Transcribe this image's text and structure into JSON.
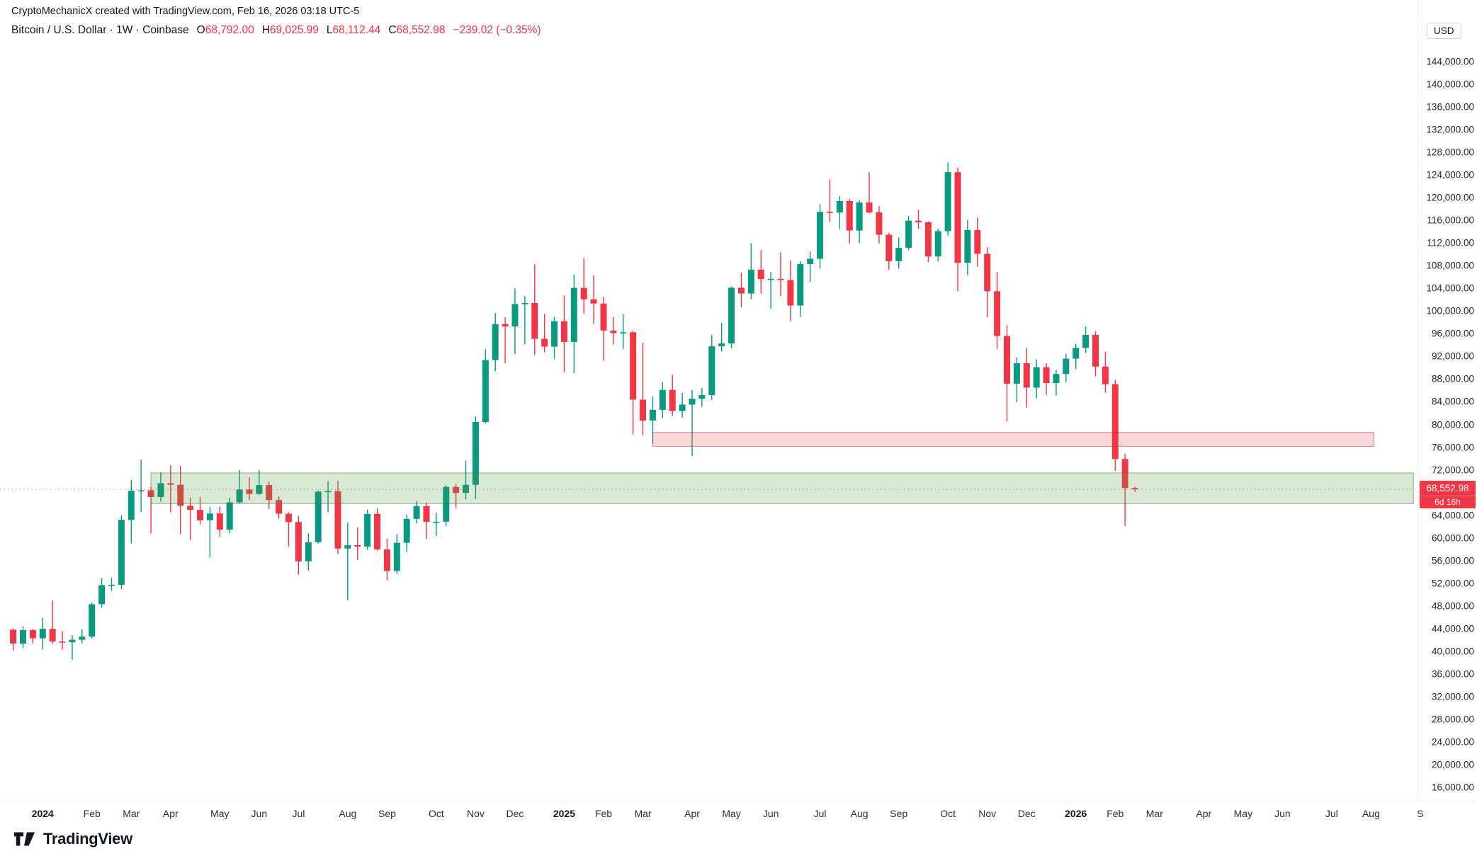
{
  "header": {
    "attribution": "CryptoMechanicX created with TradingView.com, Feb 16, 2026 03:18 UTC-5",
    "symbol": "Bitcoin / U.S. Dollar · 1W · Coinbase",
    "ohlc": {
      "open_label": "O",
      "open_value": "68,792.00",
      "high_label": "H",
      "high_value": "69,025.99",
      "low_label": "L",
      "low_value": "68,112.44",
      "close_label": "C",
      "close_value": "68,552.98",
      "change_value": "−239.02 (−0.35%)"
    }
  },
  "price_axis": {
    "currency_label": "USD",
    "min": 16000,
    "max": 144000,
    "step": 4000,
    "last_price_label": "68,552.98",
    "countdown_label": "6d 16h"
  },
  "time_axis": {
    "labels": [
      [
        "2024",
        3,
        1
      ],
      [
        "Feb",
        8,
        0
      ],
      [
        "Mar",
        12,
        0
      ],
      [
        "Apr",
        16,
        0
      ],
      [
        "May",
        21,
        0
      ],
      [
        "Jun",
        25,
        0
      ],
      [
        "Jul",
        29,
        0
      ],
      [
        "Aug",
        34,
        0
      ],
      [
        "Sep",
        38,
        0
      ],
      [
        "Oct",
        43,
        0
      ],
      [
        "Nov",
        47,
        0
      ],
      [
        "Dec",
        51,
        0
      ],
      [
        "2025",
        56,
        1
      ],
      [
        "Feb",
        60,
        0
      ],
      [
        "Mar",
        64,
        0
      ],
      [
        "Apr",
        69,
        0
      ],
      [
        "May",
        73,
        0
      ],
      [
        "Jun",
        77,
        0
      ],
      [
        "Jul",
        82,
        0
      ],
      [
        "Aug",
        86,
        0
      ],
      [
        "Sep",
        90,
        0
      ],
      [
        "Oct",
        95,
        0
      ],
      [
        "Nov",
        99,
        0
      ],
      [
        "Dec",
        103,
        0
      ],
      [
        "2026",
        108,
        1
      ],
      [
        "Feb",
        112,
        0
      ],
      [
        "Mar",
        116,
        0
      ],
      [
        "Apr",
        121,
        0
      ],
      [
        "May",
        125,
        0
      ],
      [
        "Jun",
        129,
        0
      ],
      [
        "Jul",
        134,
        0
      ],
      [
        "Aug",
        138,
        0
      ],
      [
        "S",
        143,
        0
      ]
    ]
  },
  "footer": {
    "logo_text": "TradingView"
  },
  "colors": {
    "up": "#089981",
    "down": "#f23645",
    "text": "#131722"
  },
  "chart_data": {
    "type": "candlestick",
    "title": "Bitcoin / U.S. Dollar",
    "exchange": "Coinbase",
    "interval": "1W",
    "start_date": "2023-12-11",
    "interval_days": 7,
    "ylim": [
      16000,
      144000
    ],
    "last_price": 68552.98,
    "candles": [
      [
        43790,
        44050,
        40150,
        41350
      ],
      [
        41350,
        44410,
        40550,
        43720
      ],
      [
        43720,
        43960,
        41400,
        42280
      ],
      [
        42280,
        45880,
        40300,
        43960
      ],
      [
        43960,
        48970,
        41320,
        41720
      ],
      [
        41720,
        43580,
        40280,
        41580
      ],
      [
        41580,
        42850,
        38520,
        42030
      ],
      [
        42030,
        43900,
        41400,
        42580
      ],
      [
        42580,
        48590,
        42270,
        48290
      ],
      [
        48290,
        52890,
        47710,
        51660
      ],
      [
        51660,
        52990,
        50630,
        51730
      ],
      [
        51730,
        64000,
        50930,
        63170
      ],
      [
        63170,
        70180,
        59010,
        68300
      ],
      [
        68300,
        73800,
        64550,
        68390
      ],
      [
        68390,
        68990,
        60770,
        67210
      ],
      [
        67210,
        71550,
        66380,
        69640
      ],
      [
        69640,
        72800,
        64500,
        69360
      ],
      [
        69360,
        72700,
        60660,
        65650
      ],
      [
        65650,
        67100,
        59600,
        64940
      ],
      [
        64940,
        67200,
        62400,
        63110
      ],
      [
        63110,
        65500,
        56500,
        64300
      ],
      [
        64300,
        65500,
        60200,
        61450
      ],
      [
        61450,
        67080,
        60800,
        66270
      ],
      [
        66270,
        71970,
        66060,
        68520
      ],
      [
        68520,
        70670,
        66670,
        67750
      ],
      [
        67750,
        71950,
        67580,
        69310
      ],
      [
        69310,
        69900,
        65100,
        66670
      ],
      [
        66670,
        67300,
        63360,
        64260
      ],
      [
        64260,
        64520,
        58400,
        62780
      ],
      [
        62780,
        63850,
        53500,
        55850
      ],
      [
        55850,
        60800,
        54260,
        59230
      ],
      [
        59230,
        68380,
        59000,
        68150
      ],
      [
        68150,
        69980,
        64500,
        68250
      ],
      [
        68250,
        70080,
        57120,
        58120
      ],
      [
        58120,
        62740,
        49000,
        58710
      ],
      [
        58710,
        61850,
        56100,
        58460
      ],
      [
        58460,
        65000,
        57870,
        64220
      ],
      [
        64220,
        65200,
        57710,
        57970
      ],
      [
        57970,
        59830,
        52530,
        54160
      ],
      [
        54160,
        60660,
        53630,
        59130
      ],
      [
        59130,
        64100,
        57490,
        63350
      ],
      [
        63350,
        66480,
        62550,
        65600
      ],
      [
        65600,
        66250,
        59830,
        62820
      ],
      [
        62820,
        64460,
        60340,
        62850
      ],
      [
        62850,
        69300,
        62050,
        68990
      ],
      [
        68990,
        69500,
        65260,
        67930
      ],
      [
        67930,
        73600,
        66800,
        69360
      ],
      [
        69360,
        81450,
        66830,
        80430
      ],
      [
        80430,
        93250,
        80220,
        91350
      ],
      [
        91350,
        99650,
        89380,
        97700
      ],
      [
        97700,
        98940,
        90790,
        97280
      ],
      [
        97280,
        104000,
        92400,
        101240
      ],
      [
        101240,
        102650,
        94150,
        101420
      ],
      [
        101420,
        108270,
        92230,
        95100
      ],
      [
        95100,
        99500,
        92700,
        93720
      ],
      [
        93720,
        99000,
        91530,
        98210
      ],
      [
        98210,
        102750,
        89260,
        94560
      ],
      [
        94560,
        106460,
        89050,
        104080
      ],
      [
        104080,
        109360,
        99550,
        102080
      ],
      [
        102080,
        106280,
        97780,
        101330
      ],
      [
        101330,
        102500,
        91230,
        96560
      ],
      [
        96560,
        98970,
        94090,
        96120
      ],
      [
        96120,
        99480,
        93320,
        96270
      ],
      [
        96270,
        96500,
        78260,
        84370
      ],
      [
        84370,
        94420,
        78100,
        80700
      ],
      [
        80700,
        84970,
        76600,
        82580
      ],
      [
        82580,
        87470,
        81130,
        86090
      ],
      [
        86090,
        88770,
        81560,
        82380
      ],
      [
        82380,
        85550,
        81200,
        83500
      ],
      [
        83500,
        86100,
        74440,
        84540
      ],
      [
        84540,
        86450,
        83110,
        85170
      ],
      [
        85170,
        95770,
        84320,
        93780
      ],
      [
        93780,
        97900,
        92850,
        94280
      ],
      [
        94280,
        104330,
        93390,
        104110
      ],
      [
        104110,
        106790,
        100700,
        103100
      ],
      [
        103100,
        111970,
        102100,
        107310
      ],
      [
        107310,
        110750,
        103110,
        105650
      ],
      [
        105650,
        106880,
        100380,
        105690
      ],
      [
        105690,
        110370,
        102660,
        105470
      ],
      [
        105470,
        108950,
        98200,
        100980
      ],
      [
        100980,
        108800,
        98970,
        108300
      ],
      [
        108300,
        110530,
        105100,
        109220
      ],
      [
        109220,
        118860,
        107520,
        117500
      ],
      [
        117500,
        123230,
        115700,
        117380
      ],
      [
        117380,
        120250,
        114500,
        119400
      ],
      [
        119400,
        119800,
        111920,
        114200
      ],
      [
        114200,
        119500,
        112000,
        119150
      ],
      [
        119150,
        124500,
        117250,
        117400
      ],
      [
        117400,
        118500,
        111900,
        113470
      ],
      [
        113470,
        113800,
        107270,
        108790
      ],
      [
        108790,
        113000,
        107500,
        111170
      ],
      [
        111170,
        116750,
        110750,
        115950
      ],
      [
        115950,
        117900,
        114500,
        115680
      ],
      [
        115680,
        115800,
        108650,
        109630
      ],
      [
        109630,
        114500,
        108800,
        114100
      ],
      [
        114100,
        126200,
        113300,
        124500
      ],
      [
        124500,
        125300,
        103500,
        108500
      ],
      [
        108500,
        116100,
        106300,
        114300
      ],
      [
        114300,
        116500,
        107800,
        110100
      ],
      [
        110100,
        111300,
        98900,
        103500
      ],
      [
        103500,
        106900,
        93300,
        95600
      ],
      [
        95600,
        97500,
        80500,
        87200
      ],
      [
        87200,
        91800,
        83900,
        90800
      ],
      [
        90800,
        93500,
        83000,
        86500
      ],
      [
        86500,
        91500,
        84600,
        90100
      ],
      [
        90100,
        90800,
        85200,
        87300
      ],
      [
        87300,
        89600,
        85100,
        88900
      ],
      [
        88900,
        92500,
        87400,
        91600
      ],
      [
        91600,
        94200,
        89800,
        93500
      ],
      [
        93500,
        97300,
        92600,
        95800
      ],
      [
        95800,
        96400,
        88500,
        90200
      ],
      [
        90200,
        92800,
        85600,
        87100
      ],
      [
        87100,
        87900,
        71800,
        73900
      ],
      [
        73900,
        74800,
        62100,
        68800
      ],
      [
        68792,
        69025.99,
        68112.44,
        68552.98
      ]
    ],
    "zones": [
      {
        "name": "resistance-zone",
        "top": 78600,
        "bottom": 76150,
        "start_week": 65,
        "end_week": 138.3,
        "fill": "rgba(242,54,69,0.20)",
        "border": "rgba(190,40,56,0.55)"
      },
      {
        "name": "support-zone",
        "top": 71450,
        "bottom": 66050,
        "start_week": 14,
        "end_week": 142.3,
        "fill": "rgba(76,155,70,0.22)",
        "border": "rgba(78,120,62,0.60)"
      }
    ]
  }
}
